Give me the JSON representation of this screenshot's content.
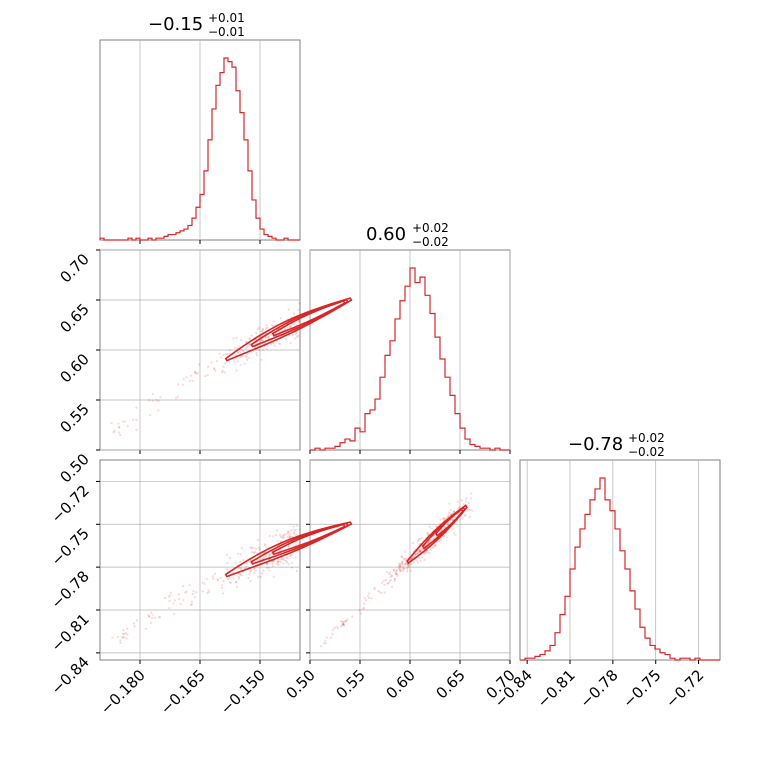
{
  "colors": {
    "line": "#d62728",
    "grid": "#b0b0b0",
    "frame": "#808080"
  },
  "chart_data": {
    "type": "corner",
    "parameters": [
      {
        "median": "−0.15",
        "plus": "+0.01",
        "minus": "−0.01",
        "range": [
          -0.19,
          -0.14
        ],
        "ticks": [
          -0.18,
          -0.165,
          -0.15
        ],
        "tick_labels": [
          "−0.180",
          "−0.165",
          "−0.150"
        ]
      },
      {
        "median": "0.60",
        "plus": "+0.02",
        "minus": "−0.02",
        "range": [
          0.5,
          0.7
        ],
        "ticks": [
          0.5,
          0.55,
          0.6,
          0.65,
          0.7
        ],
        "tick_labels": [
          "0.50",
          "0.55",
          "0.60",
          "0.65",
          "0.70"
        ]
      },
      {
        "median": "−0.78",
        "plus": "+0.02",
        "minus": "−0.02",
        "range": [
          -0.845,
          -0.705
        ],
        "ticks": [
          -0.84,
          -0.81,
          -0.78,
          -0.75,
          -0.72
        ],
        "tick_labels": [
          "−0.84",
          "−0.81",
          "−0.78",
          "−0.75",
          "−0.72"
        ]
      }
    ],
    "histograms": [
      {
        "param": 0,
        "bins": [
          -0.19,
          -0.14
        ],
        "counts": [
          1,
          0,
          0,
          0,
          0,
          0,
          0,
          1,
          0,
          1,
          0,
          0,
          1,
          0,
          1,
          1,
          2,
          3,
          3,
          4,
          5,
          6,
          8,
          12,
          18,
          25,
          38,
          55,
          72,
          85,
          92,
          100,
          98,
          95,
          82,
          70,
          55,
          38,
          22,
          12,
          6,
          3,
          2,
          1,
          0,
          0,
          1,
          0,
          0,
          0
        ]
      },
      {
        "param": 1,
        "bins": [
          0.5,
          0.7
        ],
        "counts": [
          0,
          1,
          0,
          1,
          1,
          2,
          4,
          6,
          5,
          12,
          10,
          20,
          22,
          28,
          40,
          52,
          60,
          72,
          82,
          90,
          100,
          92,
          95,
          85,
          75,
          62,
          50,
          40,
          30,
          20,
          12,
          6,
          3,
          2,
          1,
          1,
          0,
          1,
          0,
          0
        ]
      },
      {
        "param": 2,
        "bins": [
          -0.845,
          -0.705
        ],
        "counts": [
          0,
          1,
          1,
          2,
          3,
          5,
          8,
          15,
          25,
          35,
          50,
          62,
          72,
          80,
          88,
          94,
          100,
          88,
          82,
          72,
          60,
          50,
          38,
          28,
          18,
          12,
          8,
          6,
          4,
          3,
          1,
          0,
          1,
          1,
          0,
          1,
          0,
          0,
          0,
          0
        ]
      }
    ],
    "scatter_panels": [
      {
        "x_param": 0,
        "y_param": 1,
        "relation": "curved positive correlation",
        "contour_levels": 3
      },
      {
        "x_param": 0,
        "y_param": 2,
        "relation": "curved positive correlation",
        "contour_levels": 3
      },
      {
        "x_param": 1,
        "y_param": 2,
        "relation": "near-linear positive correlation",
        "contour_levels": 3
      }
    ],
    "grid": true
  }
}
